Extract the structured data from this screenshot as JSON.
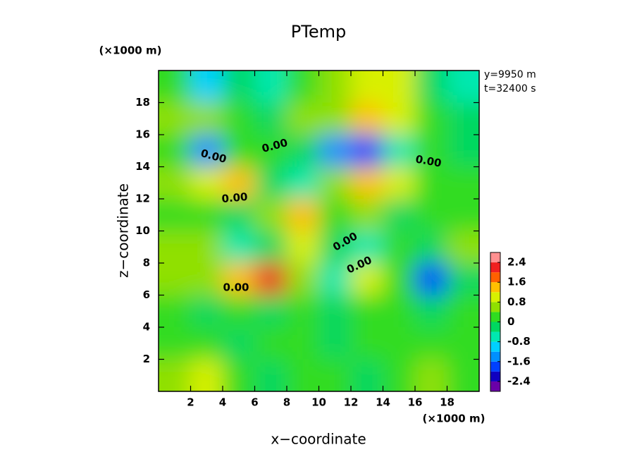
{
  "chart_data": {
    "type": "contour",
    "title": "PTemp",
    "x_label": "x−coordinate",
    "y_label": "z−coordinate",
    "x_unit": "(×1000 m)",
    "y_unit": "(×1000 m)",
    "info": [
      "y=9950  m",
      "t=32400  s"
    ],
    "contour_label": "0.00",
    "x": [
      1,
      3,
      5,
      7,
      9,
      11,
      13,
      15,
      17,
      19
    ],
    "y": [
      19,
      17,
      15,
      13,
      11,
      9,
      7,
      5,
      3,
      1
    ],
    "z": [
      [
        0.2,
        -1.2,
        -0.2,
        -0.6,
        0.2,
        0.6,
        1.0,
        0.8,
        -0.4,
        -0.8
      ],
      [
        0.6,
        0.4,
        0.2,
        -0.2,
        0.4,
        0.6,
        1.4,
        1.0,
        0.2,
        -0.2
      ],
      [
        0.2,
        -1.6,
        0.0,
        0.2,
        -0.4,
        -1.4,
        -2.0,
        -0.6,
        0.0,
        -0.4
      ],
      [
        0.6,
        0.8,
        1.4,
        -0.2,
        -0.6,
        0.6,
        1.4,
        0.8,
        0.2,
        0.0
      ],
      [
        0.0,
        0.2,
        -0.2,
        0.6,
        1.2,
        0.0,
        0.4,
        -0.4,
        0.2,
        0.2
      ],
      [
        0.6,
        0.4,
        -0.6,
        -0.2,
        1.0,
        -0.4,
        -0.8,
        0.0,
        -0.2,
        0.4
      ],
      [
        0.4,
        0.6,
        1.2,
        2.0,
        0.6,
        -0.6,
        0.8,
        0.2,
        -2.0,
        -0.4
      ],
      [
        0.0,
        -0.2,
        0.2,
        -0.2,
        0.0,
        -0.2,
        0.2,
        0.2,
        -0.2,
        0.0
      ],
      [
        0.2,
        0.0,
        -0.4,
        0.0,
        0.2,
        -0.2,
        0.2,
        0.0,
        0.2,
        0.2
      ],
      [
        0.6,
        1.0,
        0.2,
        -0.2,
        0.0,
        0.2,
        -0.2,
        0.0,
        0.4,
        0.2
      ]
    ],
    "xlim": [
      0,
      20
    ],
    "ylim": [
      0,
      20
    ],
    "xticks": [
      2,
      4,
      6,
      8,
      10,
      12,
      14,
      16,
      18
    ],
    "yticks": [
      2,
      4,
      6,
      8,
      10,
      12,
      14,
      16,
      18
    ],
    "clim": [
      -2.8,
      2.8
    ],
    "levels": [
      -2.8,
      -2.4,
      -2.0,
      -1.6,
      -1.2,
      -0.8,
      -0.4,
      0,
      0.4,
      0.8,
      1.2,
      1.6,
      2.0,
      2.4,
      2.8
    ],
    "level_colors": [
      "#6a00a8",
      "#1000c0",
      "#0040ff",
      "#0090ff",
      "#00d0ff",
      "#00e8b0",
      "#00d860",
      "#30dc20",
      "#90e000",
      "#d8f000",
      "#ffc000",
      "#ff6000",
      "#f02020",
      "#ff9090"
    ],
    "cticks": [
      -2.4,
      -1.6,
      -0.8,
      0,
      0.8,
      1.6,
      2.4
    ]
  }
}
